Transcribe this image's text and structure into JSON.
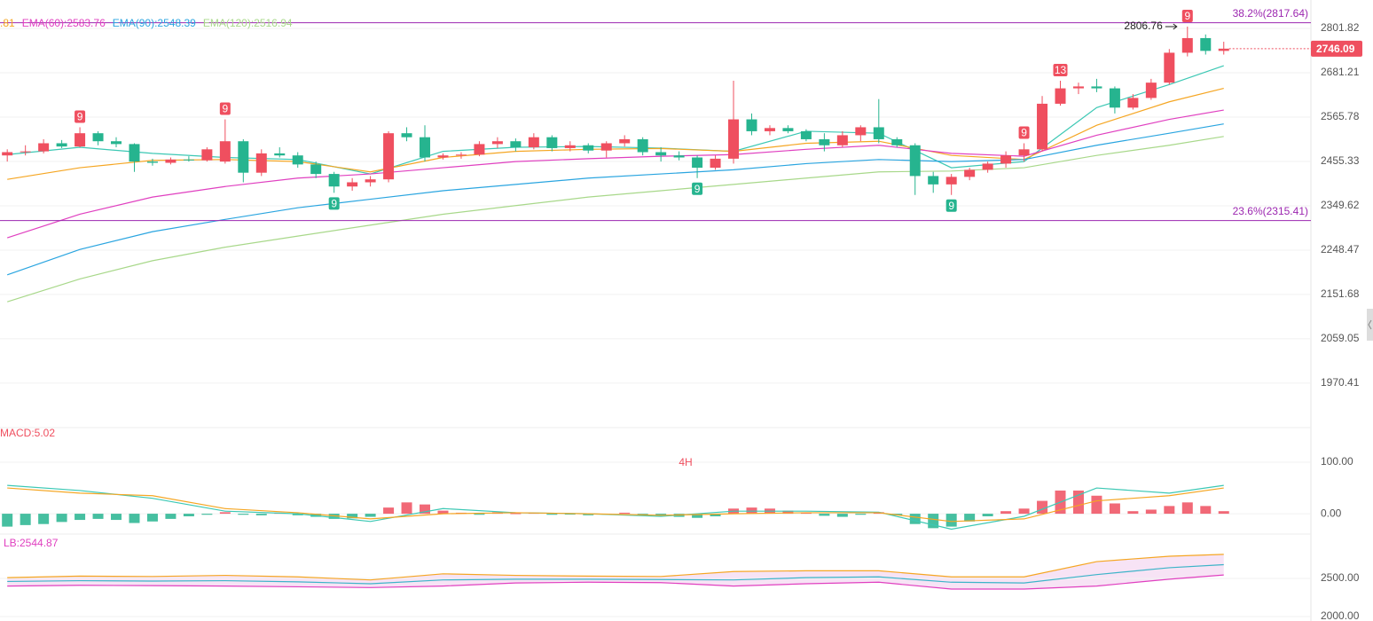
{
  "chart_data": [
    {
      "type": "candlestick",
      "log_scale": true,
      "grid": true,
      "up_color": "#ef4f5f",
      "down_color": "#26b48f",
      "xlim": [
        -0.4,
        71.8
      ],
      "ylim": [
        1888.7,
        2881.9
      ],
      "yticks": [
        2801.82,
        2681.21,
        2565.78,
        2455.33,
        2349.62,
        2248.47,
        2151.68,
        2059.05,
        1970.41
      ],
      "candles": [
        [
          2470,
          2485,
          2455,
          2478
        ],
        [
          2478,
          2495,
          2470,
          2480
        ],
        [
          2480,
          2510,
          2475,
          2500
        ],
        [
          2500,
          2508,
          2488,
          2492
        ],
        [
          2492,
          2540,
          2490,
          2525
        ],
        [
          2525,
          2530,
          2495,
          2505
        ],
        [
          2505,
          2515,
          2490,
          2498
        ],
        [
          2498,
          2500,
          2430,
          2455
        ],
        [
          2455,
          2462,
          2445,
          2452
        ],
        [
          2452,
          2465,
          2448,
          2460
        ],
        [
          2460,
          2468,
          2455,
          2458
        ],
        [
          2458,
          2490,
          2455,
          2485
        ],
        [
          2455,
          2560,
          2450,
          2505
        ],
        [
          2505,
          2510,
          2405,
          2428
        ],
        [
          2428,
          2485,
          2420,
          2475
        ],
        [
          2475,
          2490,
          2465,
          2470
        ],
        [
          2470,
          2478,
          2440,
          2448
        ],
        [
          2448,
          2455,
          2415,
          2425
        ],
        [
          2425,
          2430,
          2380,
          2395
        ],
        [
          2395,
          2415,
          2385,
          2405
        ],
        [
          2405,
          2420,
          2395,
          2412
        ],
        [
          2412,
          2530,
          2405,
          2525
        ],
        [
          2525,
          2540,
          2505,
          2515
        ],
        [
          2515,
          2545,
          2455,
          2465
        ],
        [
          2465,
          2475,
          2460,
          2470
        ],
        [
          2470,
          2478,
          2462,
          2472
        ],
        [
          2472,
          2505,
          2468,
          2498
        ],
        [
          2498,
          2515,
          2488,
          2505
        ],
        [
          2505,
          2512,
          2480,
          2490
        ],
        [
          2490,
          2525,
          2485,
          2515
        ],
        [
          2515,
          2520,
          2480,
          2488
        ],
        [
          2488,
          2505,
          2480,
          2495
        ],
        [
          2495,
          2500,
          2475,
          2482
        ],
        [
          2482,
          2505,
          2465,
          2500
        ],
        [
          2500,
          2520,
          2492,
          2510
        ],
        [
          2510,
          2515,
          2470,
          2478
        ],
        [
          2478,
          2490,
          2455,
          2470
        ],
        [
          2470,
          2480,
          2458,
          2465
        ],
        [
          2465,
          2470,
          2415,
          2440
        ],
        [
          2440,
          2470,
          2435,
          2462
        ],
        [
          2462,
          2660,
          2450,
          2560
        ],
        [
          2560,
          2575,
          2520,
          2530
        ],
        [
          2530,
          2545,
          2520,
          2538
        ],
        [
          2538,
          2545,
          2525,
          2530
        ],
        [
          2530,
          2535,
          2505,
          2510
        ],
        [
          2510,
          2525,
          2480,
          2495
        ],
        [
          2495,
          2530,
          2490,
          2520
        ],
        [
          2520,
          2545,
          2505,
          2540
        ],
        [
          2540,
          2612,
          2500,
          2510
        ],
        [
          2510,
          2515,
          2490,
          2495
        ],
        [
          2495,
          2500,
          2375,
          2420
        ],
        [
          2420,
          2430,
          2380,
          2400
        ],
        [
          2400,
          2425,
          2375,
          2418
        ],
        [
          2418,
          2440,
          2410,
          2435
        ],
        [
          2435,
          2455,
          2428,
          2450
        ],
        [
          2450,
          2480,
          2440,
          2470
        ],
        [
          2470,
          2500,
          2455,
          2485
        ],
        [
          2485,
          2620,
          2480,
          2600
        ],
        [
          2600,
          2660,
          2595,
          2640
        ],
        [
          2640,
          2655,
          2625,
          2645
        ],
        [
          2645,
          2665,
          2630,
          2640
        ],
        [
          2640,
          2645,
          2575,
          2590
        ],
        [
          2590,
          2625,
          2585,
          2615
        ],
        [
          2615,
          2665,
          2610,
          2655
        ],
        [
          2655,
          2745,
          2650,
          2735
        ],
        [
          2735,
          2806.76,
          2725,
          2775
        ],
        [
          2775,
          2785,
          2730,
          2740
        ],
        [
          2740,
          2765,
          2730,
          2746.09
        ]
      ],
      "series": [
        {
          "color": "#3cc8b4",
          "x": [
            0,
            4,
            8,
            12,
            16,
            20,
            24,
            28,
            32,
            36,
            40,
            44,
            48,
            52,
            56,
            60,
            64,
            67
          ],
          "values": [
            2472,
            2490,
            2475,
            2465,
            2460,
            2425,
            2480,
            2490,
            2492,
            2488,
            2480,
            2530,
            2525,
            2440,
            2455,
            2590,
            2650,
            2700
          ]
        },
        {
          "name": ".81",
          "color": "#f5a623",
          "x": [
            0,
            4,
            8,
            12,
            16,
            20,
            24,
            28,
            32,
            36,
            40,
            44,
            48,
            52,
            56,
            60,
            64,
            67
          ],
          "values": [
            2412,
            2440,
            2458,
            2460,
            2455,
            2430,
            2465,
            2480,
            2485,
            2487,
            2480,
            2500,
            2505,
            2470,
            2460,
            2545,
            2605,
            2640
          ]
        },
        {
          "name": "EMA(60):2583.76",
          "color": "#e040c0",
          "x": [
            0,
            4,
            8,
            12,
            16,
            20,
            24,
            28,
            32,
            36,
            40,
            44,
            48,
            52,
            56,
            60,
            64,
            67
          ],
          "values": [
            2276,
            2330,
            2370,
            2395,
            2415,
            2425,
            2440,
            2455,
            2462,
            2468,
            2472,
            2485,
            2495,
            2475,
            2468,
            2520,
            2560,
            2583.76
          ]
        },
        {
          "name": "EMA(90):2548.39",
          "color": "#2aa5e0",
          "x": [
            0,
            4,
            8,
            12,
            16,
            20,
            24,
            28,
            32,
            36,
            40,
            44,
            48,
            52,
            56,
            60,
            64,
            67
          ],
          "values": [
            2194,
            2250,
            2290,
            2318,
            2345,
            2365,
            2385,
            2400,
            2415,
            2425,
            2435,
            2450,
            2460,
            2455,
            2460,
            2495,
            2525,
            2548.39
          ]
        },
        {
          "name": "EMA(120):2516.94",
          "color": "#a8d88a",
          "x": [
            0,
            4,
            8,
            12,
            16,
            20,
            24,
            28,
            32,
            36,
            40,
            44,
            48,
            52,
            56,
            60,
            64,
            67
          ],
          "values": [
            2136,
            2185,
            2225,
            2255,
            2280,
            2305,
            2330,
            2350,
            2370,
            2385,
            2400,
            2415,
            2430,
            2432,
            2440,
            2470,
            2495,
            2516.94
          ]
        }
      ],
      "fib_levels": [
        {
          "value": 2817.64,
          "label": "38.2%(2817.64)"
        },
        {
          "value": 2315.41,
          "label": "23.6%(2315.41)"
        }
      ],
      "fib_color": "#9c27b0",
      "signals": [
        {
          "index": 4,
          "label": "9",
          "position": "above"
        },
        {
          "index": 12,
          "label": "9",
          "position": "above"
        },
        {
          "index": 18,
          "label": "9",
          "position": "below"
        },
        {
          "index": 38,
          "label": "9",
          "position": "below"
        },
        {
          "index": 52,
          "label": "9",
          "position": "below"
        },
        {
          "index": 56,
          "label": "9",
          "position": "above"
        },
        {
          "index": 58,
          "label": "13",
          "position": "above"
        },
        {
          "index": 65,
          "label": "9",
          "position": "above"
        }
      ]
    },
    {
      "type": "macd",
      "label": "MACD:5.02",
      "watermark": "4H",
      "grid": true,
      "up_color": "#ef4f5f",
      "down_color": "#26b48f",
      "xlim": [
        -0.4,
        71.8
      ],
      "ylim": [
        -36,
        162
      ],
      "yticks": [
        {
          "value": 100,
          "label": "100.00"
        },
        {
          "value": 0,
          "label": "0.00"
        }
      ],
      "histogram": [
        -25,
        -22,
        -20,
        -16,
        -12,
        -10,
        -12,
        -18,
        -15,
        -10,
        -5,
        -2,
        3,
        -2,
        -3,
        2,
        -3,
        -6,
        -10,
        -9,
        -6,
        12,
        22,
        18,
        6,
        2,
        -2,
        3,
        1,
        2,
        -2,
        -1,
        -3,
        -1,
        2,
        -2,
        -4,
        -6,
        -8,
        -5,
        10,
        12,
        10,
        6,
        2,
        -4,
        -6,
        -2,
        3,
        -3,
        -20,
        -28,
        -25,
        -15,
        -5,
        5,
        10,
        25,
        45,
        45,
        35,
        20,
        5,
        8,
        15,
        22,
        15,
        5
      ],
      "series": [
        {
          "color": "#3cc8b4",
          "x": [
            0,
            4,
            8,
            12,
            16,
            20,
            24,
            28,
            32,
            36,
            40,
            44,
            48,
            52,
            56,
            60,
            64,
            67
          ],
          "values": [
            55,
            45,
            30,
            5,
            0,
            -15,
            10,
            2,
            0,
            -5,
            5,
            5,
            3,
            -30,
            -5,
            50,
            40,
            55
          ]
        },
        {
          "color": "#f5a623",
          "x": [
            0,
            4,
            8,
            12,
            16,
            20,
            24,
            28,
            32,
            36,
            40,
            44,
            48,
            52,
            56,
            60,
            64,
            67
          ],
          "values": [
            50,
            40,
            35,
            10,
            2,
            -10,
            0,
            2,
            0,
            -3,
            0,
            2,
            2,
            -15,
            -10,
            25,
            35,
            50
          ]
        }
      ]
    },
    {
      "type": "bollinger",
      "label": "LB:2544.87",
      "grid": true,
      "fill_color": "#f5dcf3",
      "xlim": [
        -0.4,
        71.8
      ],
      "ylim": [
        1942,
        3046
      ],
      "yticks": [
        {
          "value": 2500,
          "label": "2500.00"
        },
        {
          "value": 2000,
          "label": "2000.00"
        }
      ],
      "series": [
        {
          "color": "#f5a623",
          "x": [
            0,
            4,
            8,
            12,
            16,
            20,
            24,
            28,
            32,
            36,
            40,
            44,
            48,
            52,
            56,
            60,
            64,
            67
          ],
          "values": [
            2510,
            2530,
            2525,
            2540,
            2520,
            2480,
            2560,
            2540,
            2530,
            2525,
            2590,
            2600,
            2600,
            2520,
            2520,
            2720,
            2790,
            2815
          ]
        },
        {
          "color": "#3cb4c8",
          "x": [
            0,
            4,
            8,
            12,
            16,
            20,
            24,
            28,
            32,
            36,
            40,
            44,
            48,
            52,
            56,
            60,
            64,
            67
          ],
          "values": [
            2460,
            2470,
            2465,
            2470,
            2455,
            2430,
            2480,
            2490,
            2490,
            2485,
            2480,
            2510,
            2520,
            2450,
            2440,
            2550,
            2640,
            2680
          ]
        },
        {
          "color": "#e040c0",
          "x": [
            0,
            4,
            8,
            12,
            16,
            20,
            24,
            28,
            32,
            36,
            40,
            44,
            48,
            52,
            56,
            60,
            64,
            67
          ],
          "values": [
            2400,
            2410,
            2405,
            2400,
            2390,
            2380,
            2400,
            2440,
            2450,
            2445,
            2400,
            2430,
            2450,
            2360,
            2360,
            2400,
            2490,
            2545
          ]
        }
      ]
    }
  ]
}
